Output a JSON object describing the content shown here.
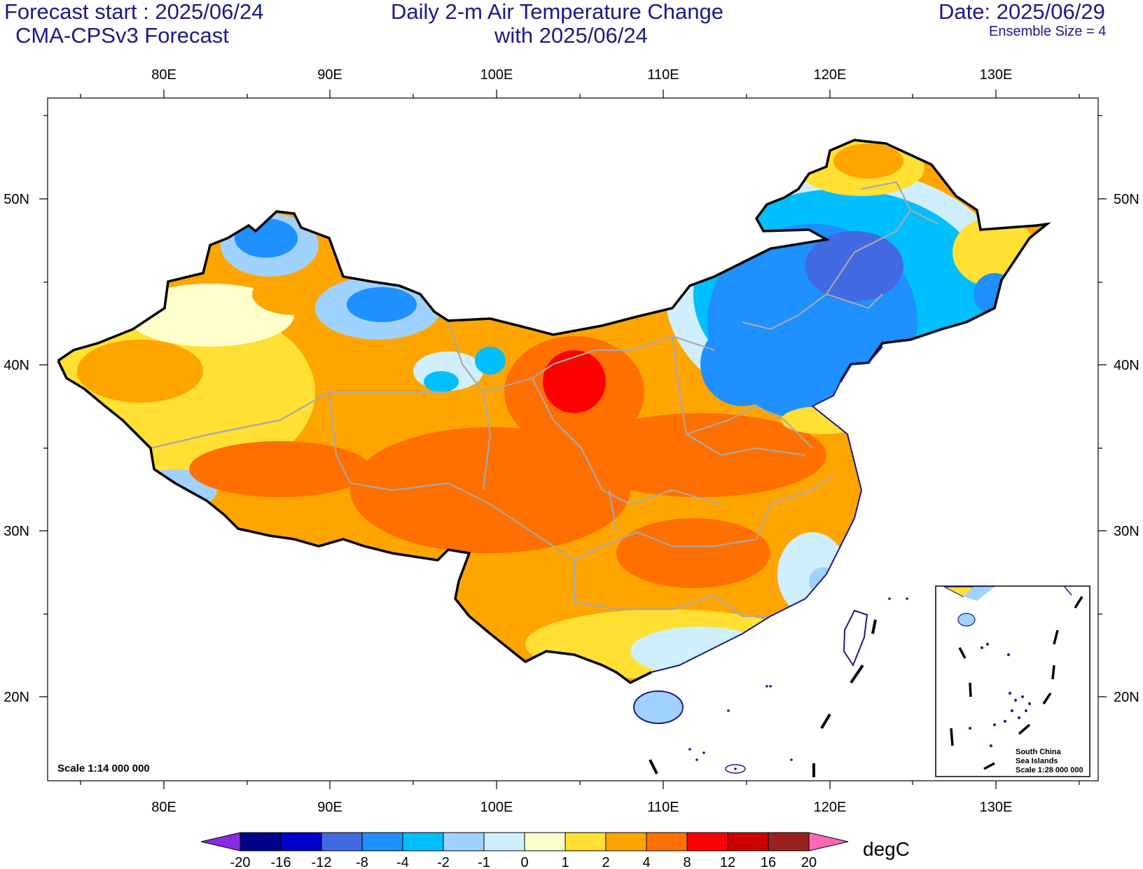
{
  "header": {
    "forecast_start": "Forecast start : 2025/06/24",
    "model": "CMA-CPSv3 Forecast",
    "title_line1": "Daily 2-m Air Temperature Change",
    "title_line2": "with 2025/06/24",
    "date": "Date: 2025/06/29",
    "ensemble": "Ensemble Size = 4"
  },
  "map": {
    "lon_ticks": [
      "80E",
      "90E",
      "100E",
      "110E",
      "120E",
      "130E"
    ],
    "lat_ticks": [
      "50N",
      "40N",
      "30N",
      "20N"
    ],
    "scale": "Scale 1:14 000 000",
    "inset": {
      "line1": "South China",
      "line2": "Sea Islands",
      "line3": "Scale 1:28 000 000"
    }
  },
  "colorbar": {
    "unit": "degC",
    "labels": [
      "-20",
      "-16",
      "-12",
      "-8",
      "-4",
      "-2",
      "-1",
      "0",
      "1",
      "2",
      "4",
      "8",
      "12",
      "16",
      "20"
    ],
    "colors": [
      "#8a2be2",
      "#00008b",
      "#0000cd",
      "#4169e1",
      "#1e90ff",
      "#00bfff",
      "#a0d2ff",
      "#cfefff",
      "#ffffcc",
      "#ffe033",
      "#ffa500",
      "#ff7000",
      "#ff0000",
      "#cd0000",
      "#9b2020",
      "#ff69b4"
    ]
  }
}
